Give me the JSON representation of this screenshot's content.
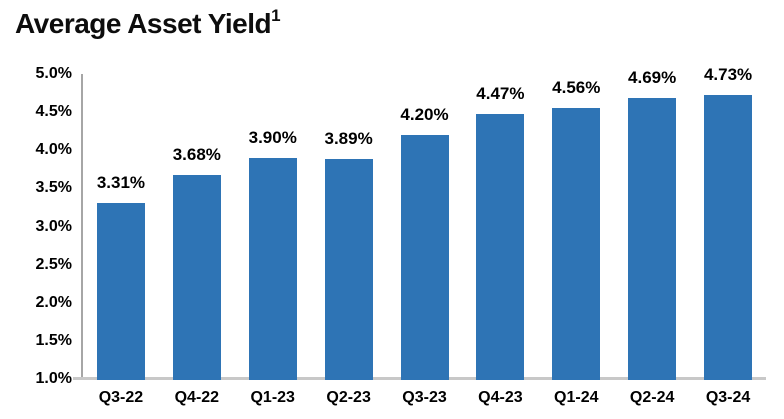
{
  "header": {
    "title": "Average Asset Yield",
    "superscript": "1"
  },
  "colors": {
    "bar": "#2e74b5",
    "y_axis_line": "#a6a6a6",
    "baseline": "#c8c8c8",
    "text": "#000000"
  },
  "chart_data": {
    "type": "bar",
    "title": "Average Asset Yield",
    "categories": [
      "Q3-22",
      "Q4-22",
      "Q1-23",
      "Q2-23",
      "Q3-23",
      "Q4-23",
      "Q1-24",
      "Q2-24",
      "Q3-24"
    ],
    "values": [
      3.31,
      3.68,
      3.9,
      3.89,
      4.2,
      4.47,
      4.56,
      4.69,
      4.73
    ],
    "data_labels": [
      "3.31%",
      "3.68%",
      "3.90%",
      "3.89%",
      "4.20%",
      "4.47%",
      "4.56%",
      "4.69%",
      "4.73%"
    ],
    "xlabel": "",
    "ylabel": "",
    "ylim": [
      1.0,
      5.0
    ],
    "ytick_step": 0.5,
    "ytick_labels": [
      "5.0%",
      "4.5%",
      "4.0%",
      "3.5%",
      "3.0%",
      "2.5%",
      "2.0%",
      "1.5%",
      "1.0%"
    ],
    "grid": false,
    "legend": null
  }
}
